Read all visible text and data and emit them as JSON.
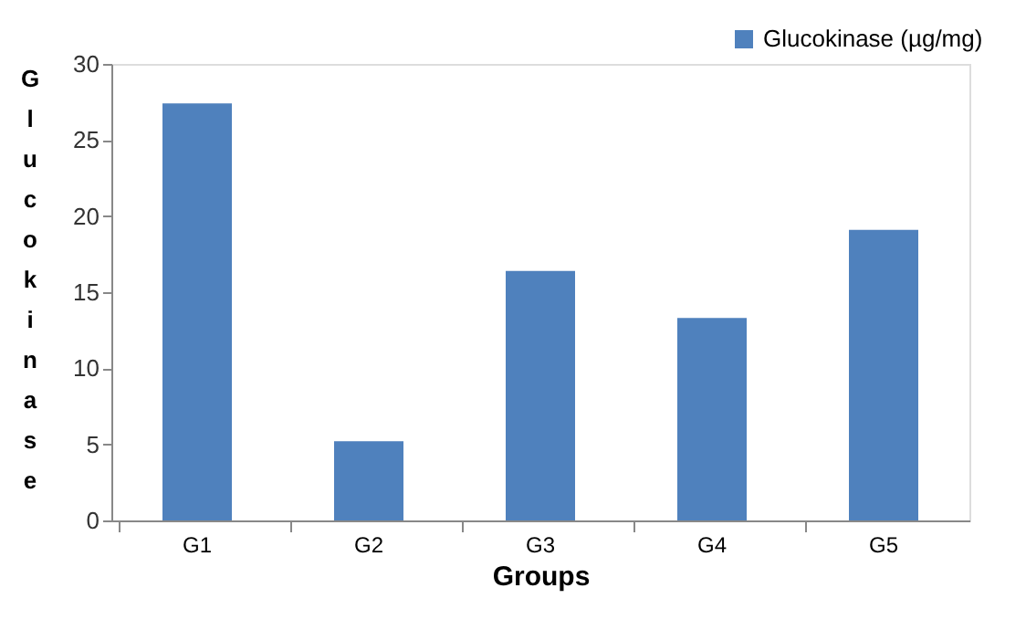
{
  "chart_data": {
    "type": "bar",
    "xlabel": "Groups",
    "ylabel": "Glucokinase",
    "categories": [
      "G1",
      "G2",
      "G3",
      "G4",
      "G5"
    ],
    "series": [
      {
        "name": "Glucokinase (µg/mg)",
        "color": "#4f81bd",
        "values": [
          27.4,
          5.2,
          16.4,
          13.3,
          19.1
        ]
      }
    ],
    "ylim": [
      0,
      30
    ],
    "yticks": [
      0,
      5,
      10,
      15,
      20,
      25,
      30
    ],
    "grid": false,
    "legend": "top right"
  }
}
